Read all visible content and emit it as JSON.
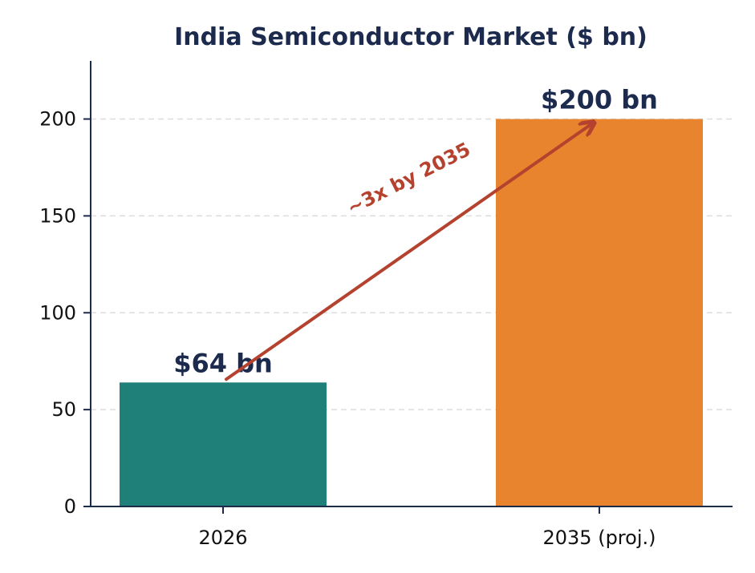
{
  "chart_data": {
    "type": "bar",
    "title": "India Semiconductor Market ($ bn)",
    "xlabel": "",
    "ylabel": "",
    "categories": [
      "2026",
      "2035 (proj.)"
    ],
    "values": [
      64,
      200
    ],
    "data_labels": [
      "$64 bn",
      "$200 bn"
    ],
    "ylim": [
      0,
      230
    ],
    "yticks": [
      0,
      50,
      100,
      150,
      200
    ],
    "grid": "horizontal dashed",
    "annotation": {
      "text": "~3x by 2035",
      "from_category": "2026",
      "from_value": 64,
      "to_category": "2035 (proj.)",
      "to_value": 200
    }
  },
  "colors": {
    "title": "#1c2a4d",
    "axis": "#1c2a4d",
    "grid": "#dddddd",
    "bars": [
      "#1f7f79",
      "#e8842e"
    ],
    "data_label": "#1c2a4d",
    "annotation": "#b5422e",
    "tick_text": "#111111"
  }
}
